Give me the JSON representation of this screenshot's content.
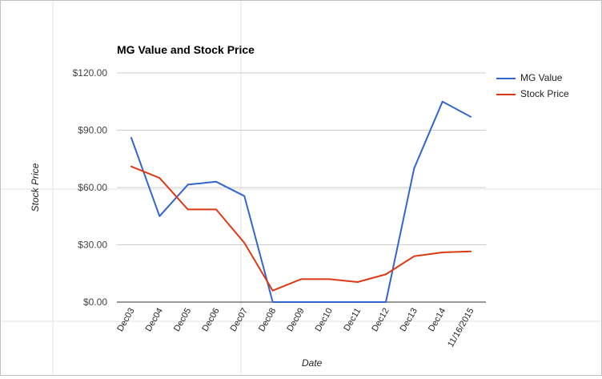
{
  "chart_data": {
    "type": "line",
    "title": "MG Value and Stock Price",
    "xlabel": "Date",
    "ylabel": "Stock Price",
    "categories": [
      "Dec03",
      "Dec04",
      "Dec05",
      "Dec06",
      "Dec07",
      "Dec08",
      "Dec09",
      "Dec10",
      "Dec11",
      "Dec12",
      "Dec13",
      "Dec14",
      "11/16/2015"
    ],
    "yticks": [
      "$0.00",
      "$30.00",
      "$60.00",
      "$90.00",
      "$120.00"
    ],
    "ylim": [
      0,
      120
    ],
    "grid": true,
    "legend_position": "right",
    "series": [
      {
        "name": "MG Value",
        "color": "#3366cc",
        "values": [
          86,
          45,
          61.5,
          63,
          55.5,
          0,
          0,
          0,
          0,
          0,
          70,
          105,
          97
        ]
      },
      {
        "name": "Stock Price",
        "color": "#dc3912",
        "values": [
          71,
          65,
          48.5,
          48.5,
          31,
          6,
          12,
          12,
          10.5,
          14.5,
          24,
          26,
          26.5
        ]
      }
    ]
  }
}
